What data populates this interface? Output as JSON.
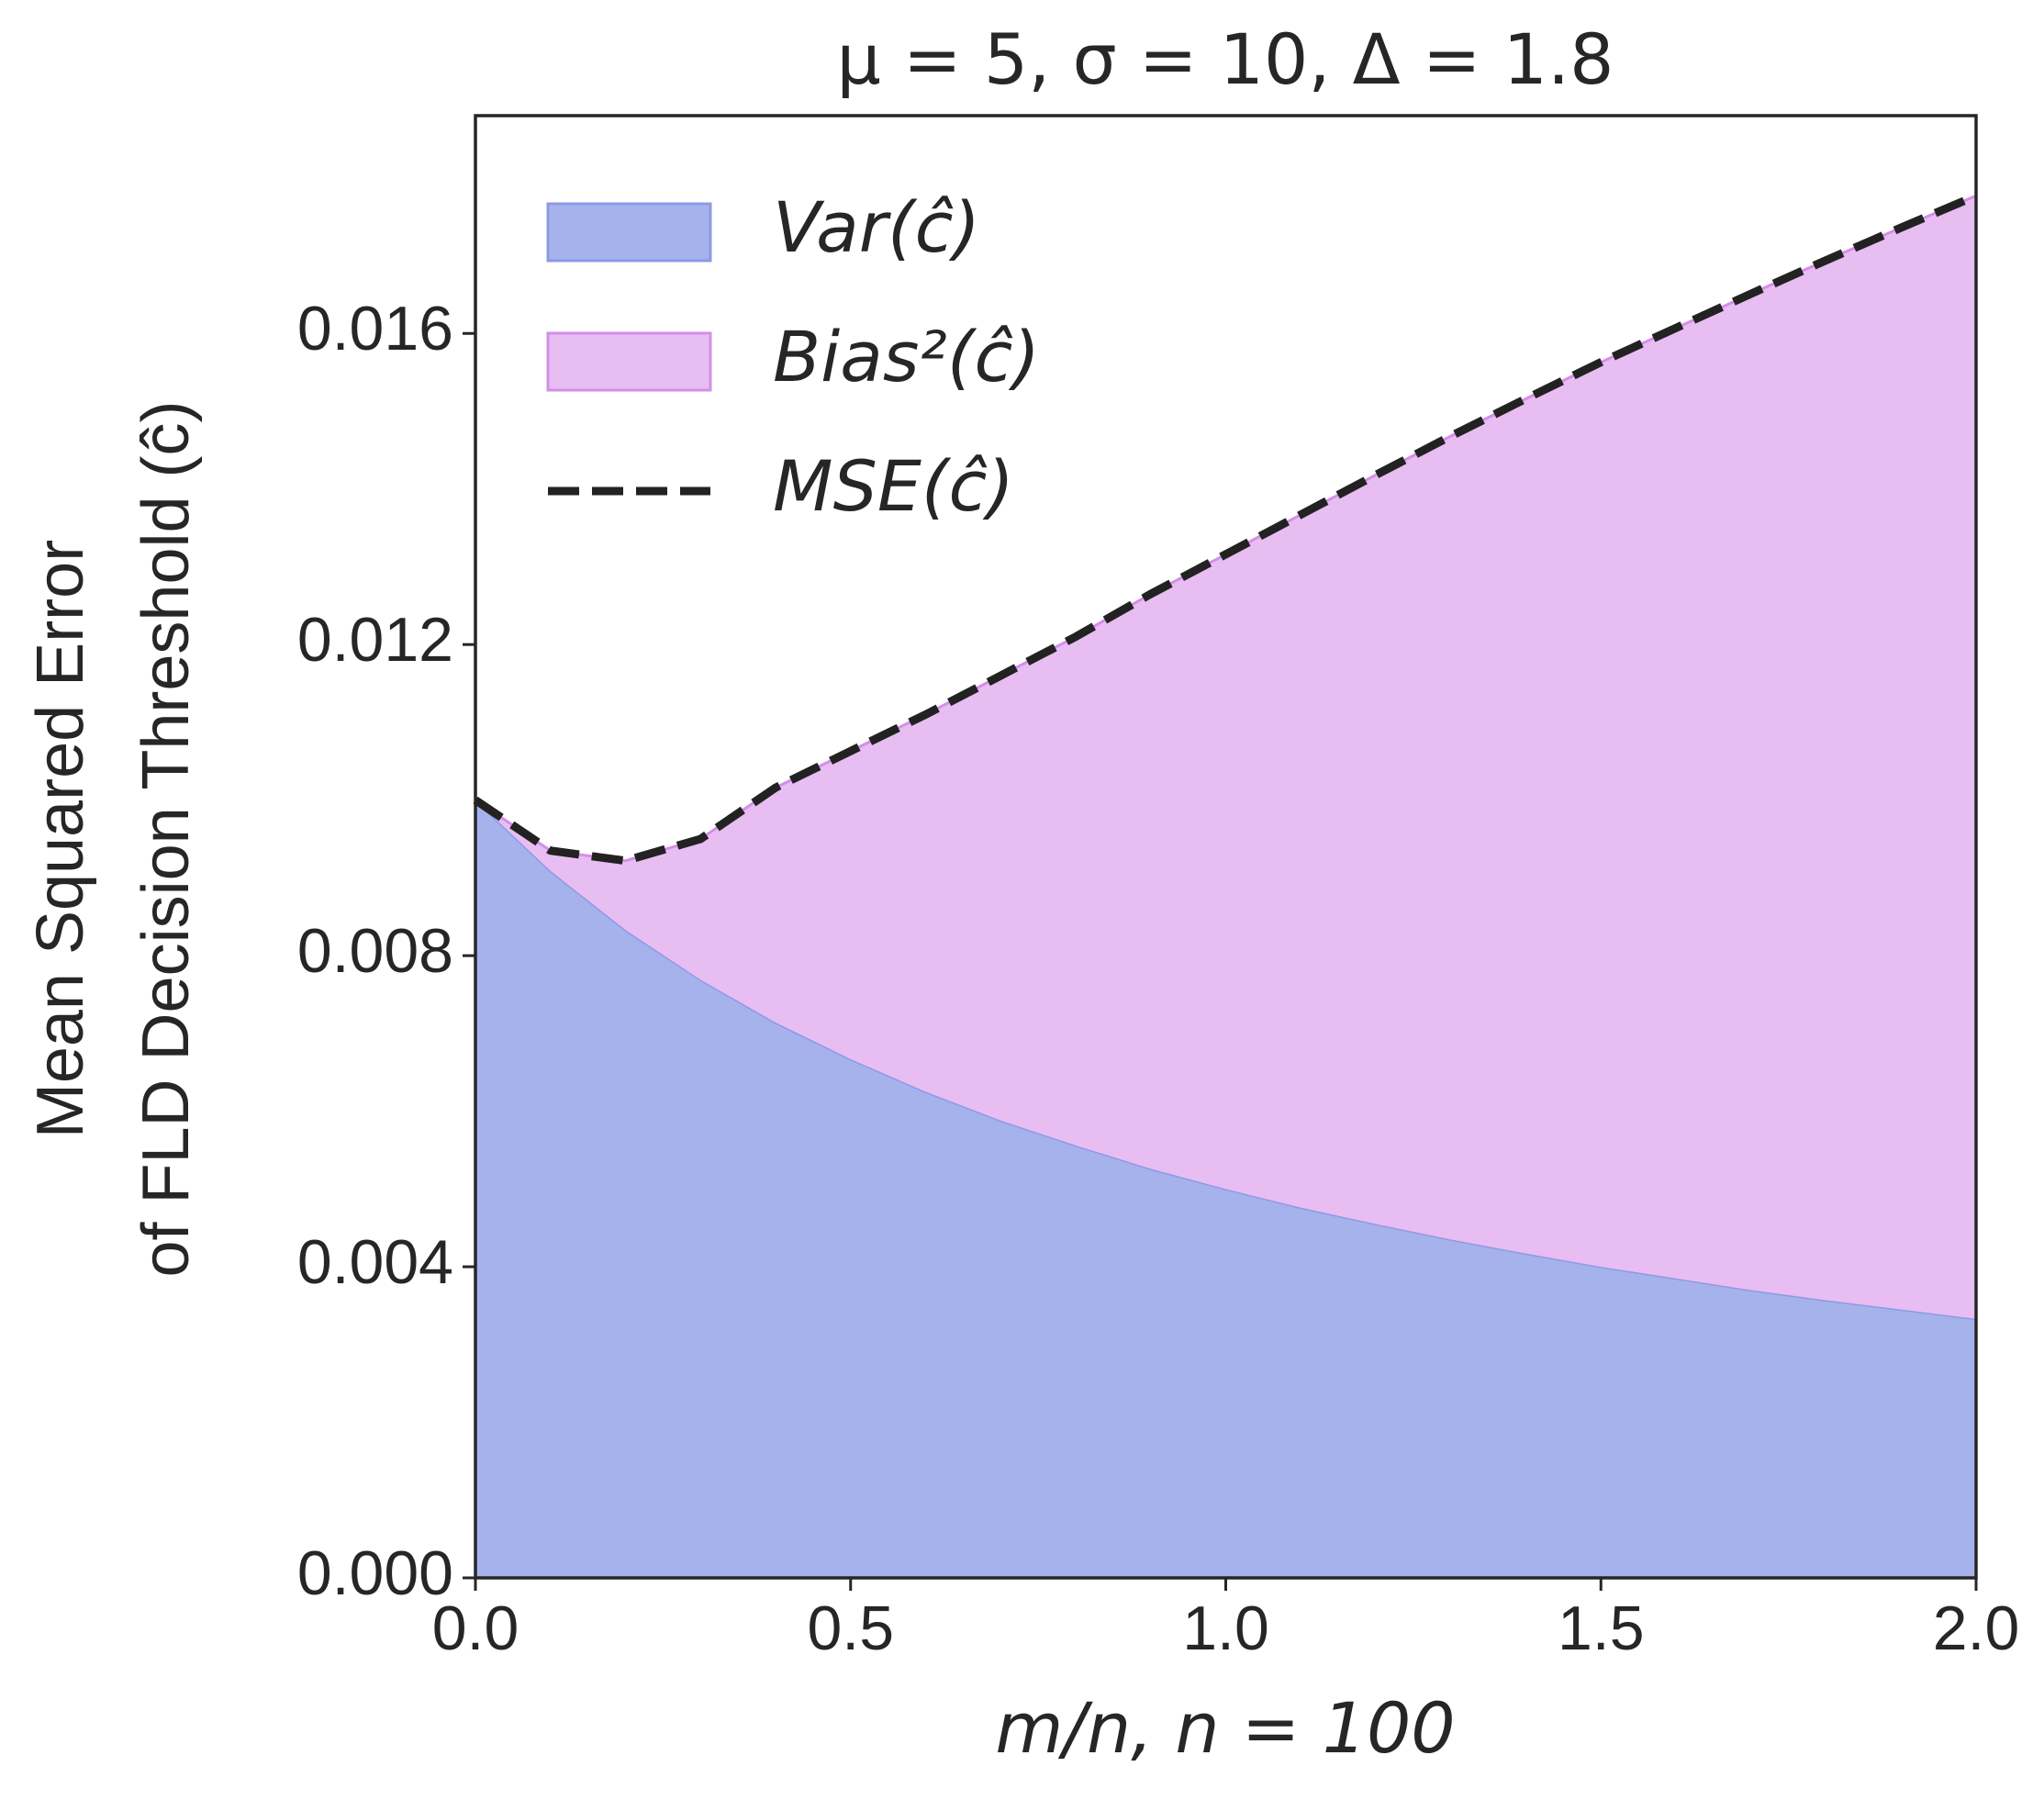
{
  "chart_data": {
    "type": "stacked-area",
    "title": "μ = 5, σ = 10, Δ = 1.8",
    "x_label": "m/n, n = 100",
    "y_label": [
      "Mean Squared Error",
      "of FLD Decision Threshold (ĉ)"
    ],
    "x": [
      0,
      0.1,
      0.2,
      0.3,
      0.4,
      0.5,
      0.6,
      0.7,
      0.8,
      0.9,
      1.0,
      1.1,
      1.2,
      1.3,
      1.4,
      1.5,
      1.6,
      1.7,
      1.8,
      1.9,
      2.0
    ],
    "series": [
      {
        "name": "Var(ĉ)",
        "color": "#a6b2ec",
        "edge": "#8c9ae6",
        "kind": "area",
        "values": [
          0.01,
          0.00909,
          0.00833,
          0.00769,
          0.00714,
          0.00667,
          0.00625,
          0.00588,
          0.00556,
          0.00526,
          0.005,
          0.00476,
          0.00455,
          0.00435,
          0.00417,
          0.004,
          0.00385,
          0.0037,
          0.00357,
          0.00345,
          0.00333
        ]
      },
      {
        "name": "Bias²(ĉ)",
        "color": "#e8bdf2",
        "edge": "#d48ee8",
        "kind": "area",
        "values": [
          0.0,
          0.00026,
          0.00089,
          0.00181,
          0.00302,
          0.00396,
          0.00485,
          0.00572,
          0.00654,
          0.00739,
          0.00816,
          0.00891,
          0.00963,
          0.01033,
          0.01099,
          0.01163,
          0.01222,
          0.01281,
          0.01337,
          0.01391,
          0.01444
        ]
      },
      {
        "name": "MSE(ĉ)",
        "color": "#222222",
        "kind": "dashed-line",
        "values": [
          0.01,
          0.00935,
          0.00922,
          0.0095,
          0.01016,
          0.01063,
          0.0111,
          0.0116,
          0.0121,
          0.01265,
          0.01316,
          0.01367,
          0.01418,
          0.01468,
          0.01516,
          0.01563,
          0.01607,
          0.01651,
          0.01694,
          0.01736,
          0.01777
        ]
      }
    ],
    "xlim": [
      0,
      2.0
    ],
    "ylim": [
      0,
      0.0188
    ],
    "xticks": [
      {
        "value": 0,
        "label": "0.0"
      },
      0.5,
      {
        "value": 1.0,
        "label": "1.0"
      },
      1.5,
      {
        "value": 2.0,
        "label": "2.0"
      }
    ],
    "yticks": [
      {
        "value": 0,
        "label": "0.000"
      },
      0.004,
      0.008,
      0.012,
      0.016
    ],
    "legend": "upper-left",
    "grid": false
  }
}
